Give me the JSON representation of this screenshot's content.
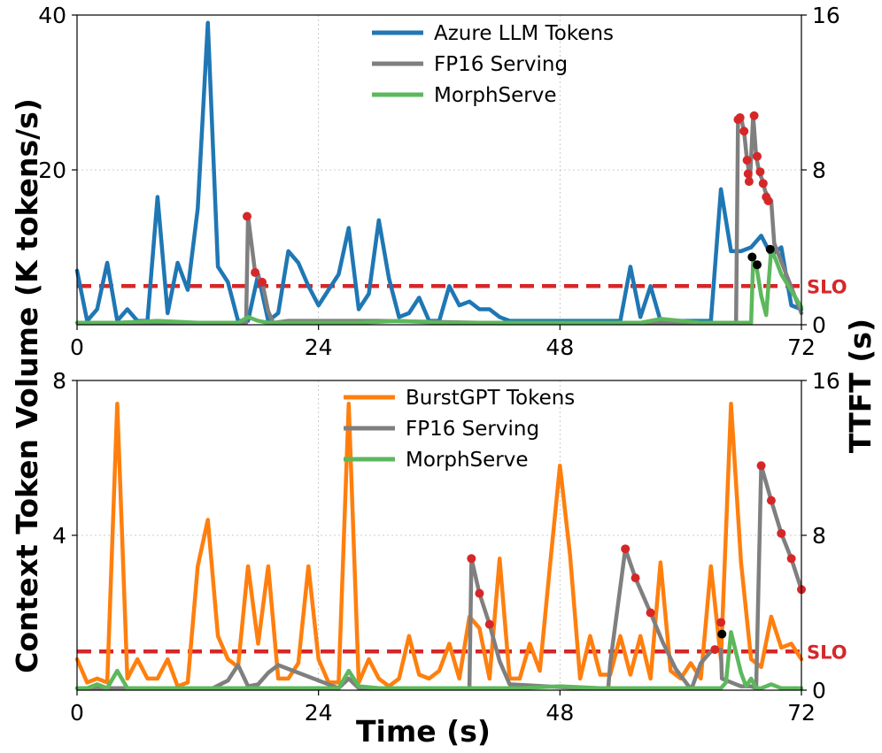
{
  "figure": {
    "ylabel_left": "Context Token Volume (K tokens/s)",
    "ylabel_right": "TTFT (s)",
    "xlabel": "Time (s)",
    "slo_label": "SLO"
  },
  "chart_data": [
    {
      "type": "line",
      "panel": "top",
      "x_ticks": [
        0,
        24,
        48,
        72
      ],
      "xlim": [
        0,
        72
      ],
      "ylim_left": [
        0,
        40
      ],
      "y_ticks_left": [
        20,
        40
      ],
      "left_tick_labels": [
        "20",
        "40"
      ],
      "ylim_right": [
        0,
        16
      ],
      "y_ticks_right": [
        0,
        8,
        16
      ],
      "right_tick_labels": [
        "0",
        "8",
        "16"
      ],
      "slo_ttft": 2.0,
      "colors": {
        "tokens": "#1f77b4",
        "fp16": "#7f7f7f",
        "morph": "#5cb85c",
        "slo": "#d62728"
      },
      "legend": [
        "Azure LLM Tokens",
        "FP16 Serving",
        "MorphServe"
      ],
      "series": [
        {
          "name": "Azure LLM Tokens",
          "axis": "left",
          "color": "#1f77b4",
          "x": [
            0,
            1,
            2,
            3,
            4,
            5,
            6,
            7,
            8,
            9,
            10,
            11,
            12,
            13,
            14,
            15,
            16,
            17,
            18,
            19,
            20,
            21,
            22,
            23,
            24,
            25,
            26,
            27,
            28,
            29,
            30,
            31,
            32,
            33,
            34,
            35,
            36,
            37,
            38,
            39,
            40,
            41,
            42,
            43,
            44,
            45,
            46,
            47,
            48,
            49,
            50,
            51,
            52,
            53,
            54,
            55,
            56,
            57,
            58,
            59,
            60,
            61,
            62,
            63,
            64,
            65,
            66,
            67,
            68,
            69,
            70,
            71,
            72
          ],
          "y": [
            7,
            0.5,
            2,
            8,
            0.5,
            2,
            0.5,
            0.5,
            16.5,
            1.5,
            8,
            4.5,
            15,
            39,
            7.5,
            5.5,
            0.5,
            0.5,
            6.5,
            0.5,
            1.5,
            9.5,
            8,
            5,
            2.5,
            4.5,
            6.5,
            12.5,
            2,
            4,
            13.5,
            6,
            1,
            1.5,
            3.5,
            0.5,
            0.5,
            5,
            2.5,
            3,
            2,
            2,
            1,
            0.5,
            0.5,
            0.5,
            0.5,
            0.5,
            0.5,
            0.5,
            0.5,
            0.5,
            0.5,
            0.5,
            0.5,
            7.5,
            1,
            5,
            0.5,
            0.5,
            0.5,
            0.5,
            0.5,
            0.5,
            17.5,
            9.5,
            9.5,
            10,
            11.5,
            9,
            10,
            2.5,
            2
          ]
        },
        {
          "name": "FP16 Serving",
          "axis": "right",
          "color": "#7f7f7f",
          "x": [
            0,
            16.8,
            17.0,
            17.7,
            18.4,
            19.0,
            19.5,
            21,
            30,
            40,
            50,
            60,
            65,
            65.5,
            65.7,
            66.0,
            66.3,
            66.6,
            66.9,
            67.2,
            67.5,
            67.8,
            68.1,
            68.4,
            68.7,
            69.0,
            69.3,
            72
          ],
          "y": [
            0.1,
            0.1,
            5.6,
            2.7,
            2.2,
            0.7,
            0.1,
            0.2,
            0.2,
            0.1,
            0.1,
            0.1,
            0.1,
            0.1,
            10.6,
            10.7,
            10.0,
            8.5,
            7.6,
            10.8,
            8.7,
            7.9,
            7.5,
            6.9,
            6.6,
            6.4,
            4.2,
            0.6
          ],
          "markers_x": [
            16.9,
            17.7,
            18.4,
            65.7,
            65.9,
            66.3,
            66.6,
            66.7,
            66.8,
            67.3,
            67.6,
            67.9,
            68.2,
            68.5,
            68.7
          ],
          "markers_y": [
            5.6,
            2.7,
            2.2,
            10.6,
            10.7,
            10.0,
            8.5,
            7.8,
            7.4,
            10.8,
            8.7,
            7.9,
            7.3,
            6.6,
            6.4
          ],
          "marker_color": "#d62728"
        },
        {
          "name": "MorphServe",
          "axis": "right",
          "color": "#5cb85c",
          "x": [
            0,
            4,
            8,
            12,
            16,
            17,
            18,
            19,
            20,
            24,
            28,
            32,
            36,
            40,
            44,
            48,
            52,
            56,
            58,
            60,
            62,
            64,
            66,
            67,
            67.2,
            67.5,
            68,
            68.5,
            69,
            69.5,
            70,
            72
          ],
          "y": [
            0.1,
            0.1,
            0.2,
            0.1,
            0.1,
            0.4,
            0.2,
            0.1,
            0.1,
            0.1,
            0.1,
            0.2,
            0.1,
            0.1,
            0.1,
            0.1,
            0.1,
            0.1,
            0.3,
            0.2,
            0.1,
            0.1,
            0.1,
            0.1,
            3.3,
            3.1,
            1.5,
            0.5,
            3.9,
            3.3,
            2.6,
            0.9
          ],
          "markers_x": [
            67.1,
            67.6,
            68.9
          ],
          "markers_y": [
            3.5,
            3.1,
            3.9
          ],
          "marker_color": "#000000"
        }
      ]
    },
    {
      "type": "line",
      "panel": "bottom",
      "x_ticks": [
        0,
        24,
        48,
        72
      ],
      "x_tick_labels": [
        "0",
        "24",
        "48",
        "72"
      ],
      "xlim": [
        0,
        72
      ],
      "ylim_left": [
        0,
        8
      ],
      "y_ticks_left": [
        4,
        8
      ],
      "left_tick_labels": [
        "4",
        "8"
      ],
      "ylim_right": [
        0,
        16
      ],
      "y_ticks_right": [
        0,
        8,
        16
      ],
      "right_tick_labels": [
        "0",
        "8",
        "16"
      ],
      "slo_ttft": 2.0,
      "colors": {
        "tokens": "#ff7f0e",
        "fp16": "#7f7f7f",
        "morph": "#5cb85c",
        "slo": "#d62728"
      },
      "legend": [
        "BurstGPT Tokens",
        "FP16 Serving",
        "MorphServe"
      ],
      "series": [
        {
          "name": "BurstGPT Tokens",
          "axis": "left",
          "color": "#ff7f0e",
          "x": [
            0,
            1,
            2,
            3,
            4,
            5,
            6,
            7,
            8,
            9,
            10,
            11,
            12,
            13,
            14,
            15,
            16,
            17,
            18,
            19,
            20,
            21,
            22,
            23,
            24,
            25,
            26,
            27,
            28,
            29,
            30,
            31,
            32,
            33,
            34,
            35,
            36,
            37,
            38,
            39,
            40,
            41,
            42,
            43,
            44,
            45,
            46,
            47,
            48,
            49,
            50,
            51,
            52,
            53,
            54,
            55,
            56,
            57,
            58,
            59,
            60,
            61,
            62,
            63,
            64,
            65,
            66,
            67,
            68,
            69,
            70,
            71,
            72
          ],
          "y": [
            0.8,
            0.2,
            0.3,
            0.2,
            7.4,
            0.3,
            0.8,
            0.3,
            0.3,
            0.8,
            0.1,
            0.2,
            3.2,
            4.4,
            1.4,
            0.8,
            0.6,
            3.2,
            1.2,
            3.2,
            0.3,
            0.3,
            0.7,
            3.2,
            0.8,
            0.2,
            0.2,
            7.4,
            0.2,
            0.8,
            0.3,
            0.1,
            0.3,
            1.4,
            0.4,
            0.3,
            0.5,
            1.2,
            0.3,
            1.9,
            1.6,
            0.3,
            3.4,
            0.3,
            0.3,
            1.2,
            0.5,
            3.2,
            5.8,
            3.5,
            0.3,
            1.4,
            0.4,
            0.4,
            1.4,
            0.4,
            1.4,
            0.3,
            3.3,
            0.5,
            0.3,
            0.7,
            0.3,
            3.2,
            0.8,
            7.4,
            3.3,
            0.8,
            0.6,
            1.9,
            1.1,
            1.2,
            0.8
          ]
        },
        {
          "name": "FP16 Serving",
          "axis": "right",
          "color": "#7f7f7f",
          "x": [
            0,
            10,
            13.5,
            15,
            16,
            17,
            18,
            19,
            20,
            26,
            27,
            28,
            39,
            39.2,
            40,
            41,
            42,
            43,
            50,
            52.8,
            53.0,
            54.5,
            55.5,
            57,
            58.2,
            59.5,
            60.8,
            61.1,
            62,
            63,
            64,
            64.1,
            65.5,
            66,
            67,
            67.5,
            68,
            69,
            70,
            71,
            72
          ],
          "y": [
            0.1,
            0.1,
            0.1,
            0.5,
            1.3,
            0.2,
            0.3,
            0.9,
            1.3,
            0.1,
            0.6,
            0.1,
            0.1,
            6.8,
            5.0,
            3.4,
            1.5,
            0.3,
            0.1,
            0.1,
            1.4,
            7.3,
            5.8,
            4.0,
            2.5,
            1.1,
            0.2,
            0.1,
            1.4,
            2.0,
            2.1,
            0.6,
            0.3,
            0.2,
            0.2,
            0.1,
            11.6,
            9.8,
            8.1,
            6.8,
            5.2
          ],
          "markers_x": [
            39.2,
            40,
            41,
            54.5,
            55.5,
            57,
            63.4,
            64.0,
            68,
            69,
            70,
            71,
            72
          ],
          "markers_y": [
            6.8,
            5.0,
            3.4,
            7.3,
            5.8,
            4.0,
            2.1,
            3.5,
            11.6,
            9.8,
            8.1,
            6.8,
            5.2
          ],
          "marker_color": "#d62728"
        },
        {
          "name": "MorphServe",
          "axis": "right",
          "color": "#5cb85c",
          "x": [
            0,
            1,
            2,
            3,
            4,
            5,
            6,
            8,
            10,
            12,
            14,
            16,
            20,
            24,
            26,
            27,
            28,
            30,
            34,
            38,
            40,
            44,
            48,
            52,
            56,
            60,
            62,
            63,
            64,
            64.5,
            65,
            66,
            66.5,
            67,
            67.5,
            68,
            69,
            70,
            72
          ],
          "y": [
            0.1,
            0.1,
            0.3,
            0.1,
            1.0,
            0.1,
            0.1,
            0.1,
            0.1,
            0.1,
            0.1,
            0.1,
            0.1,
            0.1,
            0.1,
            1.0,
            0.2,
            0.1,
            0.1,
            0.1,
            0.1,
            0.1,
            0.2,
            0.1,
            0.1,
            0.1,
            0.1,
            0.1,
            0.1,
            0.4,
            3.0,
            0.9,
            0.2,
            0.6,
            0.1,
            0.1,
            0.3,
            0.1,
            0.1
          ],
          "markers_x": [
            64.1
          ],
          "markers_y": [
            2.9
          ],
          "marker_color": "#000000"
        }
      ]
    }
  ]
}
